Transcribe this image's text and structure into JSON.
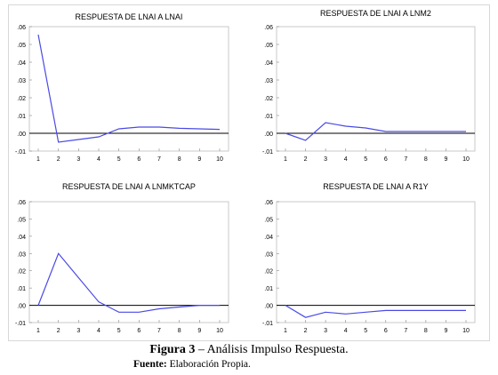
{
  "chart_data": [
    {
      "type": "line",
      "title": "RESPUESTA DE LNAI A LNAI",
      "x": [
        1,
        2,
        3,
        4,
        5,
        6,
        7,
        8,
        9,
        10
      ],
      "series": [
        {
          "values": [
            0.0555,
            -0.005,
            -0.0035,
            -0.002,
            0.0025,
            0.0035,
            0.0035,
            0.0028,
            0.0025,
            0.0022
          ]
        }
      ],
      "ylim": [
        -0.01,
        0.06
      ],
      "yticks": [
        ".06",
        ".05",
        ".04",
        ".03",
        ".02",
        ".01",
        ".00",
        "-.01"
      ],
      "xticks": [
        "1",
        "2",
        "3",
        "4",
        "5",
        "6",
        "7",
        "8",
        "9",
        "10"
      ],
      "zero_line": true,
      "colors": {
        "line": "#4a4ae6",
        "zero": "#000000",
        "frame": "#c8c8c8"
      }
    },
    {
      "type": "line",
      "title": "RESPUESTA DE LNAI A LNM2",
      "x": [
        1,
        2,
        3,
        4,
        5,
        6,
        7,
        8,
        9,
        10
      ],
      "series": [
        {
          "values": [
            0.0,
            -0.004,
            0.006,
            0.004,
            0.003,
            0.001,
            0.001,
            0.001,
            0.001,
            0.001
          ]
        }
      ],
      "ylim": [
        -0.01,
        0.06
      ],
      "yticks": [
        ".06",
        ".05",
        ".04",
        ".03",
        ".02",
        ".01",
        ".00",
        "-.01"
      ],
      "xticks": [
        "1",
        "2",
        "3",
        "4",
        "5",
        "6",
        "7",
        "8",
        "9",
        "10"
      ],
      "zero_line": true,
      "colors": {
        "line": "#4a4ae6",
        "zero": "#000000",
        "frame": "#c8c8c8"
      }
    },
    {
      "type": "line",
      "title": "RESPUESTA DE LNAI A LNMKTCAP",
      "x": [
        1,
        2,
        3,
        4,
        5,
        6,
        7,
        8,
        9,
        10
      ],
      "series": [
        {
          "values": [
            0.0,
            0.03,
            0.016,
            0.002,
            -0.004,
            -0.004,
            -0.002,
            -0.001,
            0.0,
            0.0
          ]
        }
      ],
      "ylim": [
        -0.01,
        0.06
      ],
      "yticks": [
        ".06",
        ".05",
        ".04",
        ".03",
        ".02",
        ".01",
        ".00",
        "-.01"
      ],
      "xticks": [
        "1",
        "2",
        "3",
        "4",
        "5",
        "6",
        "7",
        "8",
        "9",
        "10"
      ],
      "zero_line": true,
      "colors": {
        "line": "#4a4ae6",
        "zero": "#000000",
        "frame": "#c8c8c8"
      }
    },
    {
      "type": "line",
      "title": "RESPUESTA DE LNAI A R1Y",
      "x": [
        1,
        2,
        3,
        4,
        5,
        6,
        7,
        8,
        9,
        10
      ],
      "series": [
        {
          "values": [
            0.0,
            -0.007,
            -0.004,
            -0.005,
            -0.004,
            -0.003,
            -0.003,
            -0.003,
            -0.003,
            -0.003
          ]
        }
      ],
      "ylim": [
        -0.01,
        0.06
      ],
      "yticks": [
        ".06",
        ".05",
        ".04",
        ".03",
        ".02",
        ".01",
        ".00",
        "-.01"
      ],
      "xticks": [
        "1",
        "2",
        "3",
        "4",
        "5",
        "6",
        "7",
        "8",
        "9",
        "10"
      ],
      "zero_line": true,
      "colors": {
        "line": "#4a4ae6",
        "zero": "#000000",
        "frame": "#c8c8c8"
      }
    }
  ],
  "caption": {
    "label": "Figura 3",
    "separator": " – ",
    "text": "Análisis Impulso Respuesta."
  },
  "source": {
    "label": "Fuente:",
    "text": " Elaboración Propia."
  }
}
